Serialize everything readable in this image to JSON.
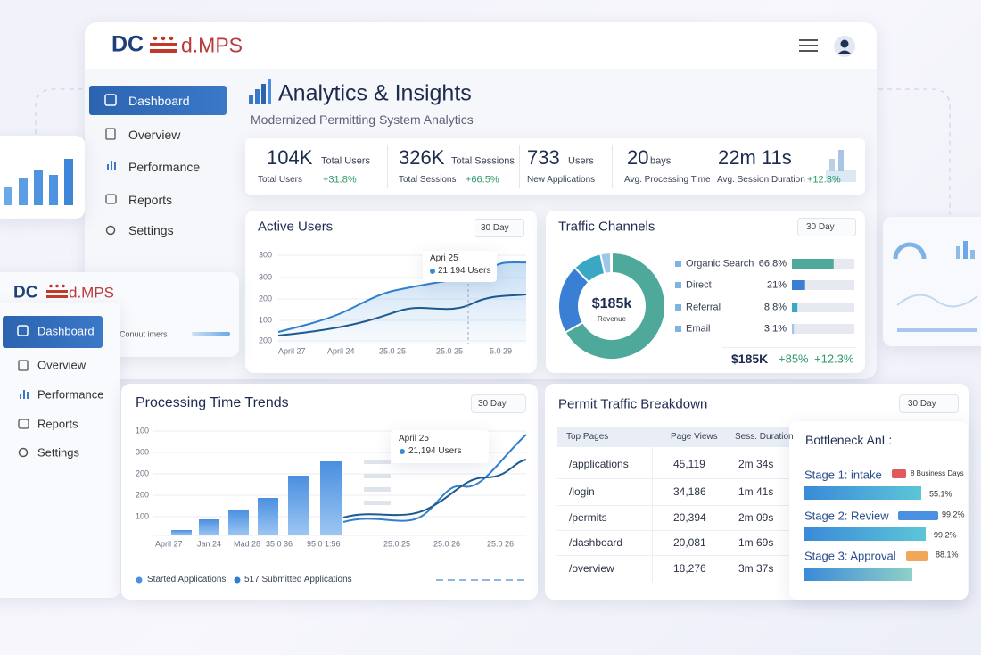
{
  "header": {
    "logo_mark": "DC",
    "logo_text": "d.MPS"
  },
  "nav": [
    "Dashboard",
    "Overview",
    "Performance",
    "Reports",
    "Settings"
  ],
  "page": {
    "title": "Analytics & Insights",
    "subtitle": "Modernized Permitting System Analytics"
  },
  "kpis": [
    {
      "value": "104K",
      "unit": "Total Users",
      "label": "Total Users",
      "change": "+31.8%"
    },
    {
      "value": "326K",
      "unit": "Total Sessions",
      "label": "Total Sessions",
      "change": "+66.5%"
    },
    {
      "value": "733",
      "unit": "Users",
      "label": "New Applications"
    },
    {
      "value": "20",
      "unit": "bays",
      "label": "Avg. Processing Time"
    },
    {
      "value": "22m 11s",
      "label": "Avg. Session Duration",
      "change": "+12.3%"
    }
  ],
  "active_users": {
    "title": "Active Users",
    "range": "30 Day",
    "y_labels": [
      300,
      300,
      200,
      100,
      200
    ],
    "x_labels": [
      "April 27",
      "April 24",
      "25.0 25",
      "25.0 25",
      "5.0 29"
    ],
    "tooltip": {
      "date": "Apri 25",
      "value": "21,194 Users"
    }
  },
  "traffic_channels": {
    "title": "Traffic Channels",
    "range": "30 Day",
    "center_value": "$185k",
    "center_label": "Revenue",
    "channels": [
      {
        "name": "Organic Search",
        "value": 66.8,
        "label": "66.8%",
        "color": "#4fa99a"
      },
      {
        "name": "Direct",
        "value": 21,
        "label": "21%",
        "color": "#3b7fd4"
      },
      {
        "name": "Referral",
        "value": 8.8,
        "label": "8.8%",
        "color": "#3aa7c4"
      },
      {
        "name": "Email",
        "value": 3.1,
        "label": "3.1%",
        "color": "#9cc7e8"
      }
    ],
    "total": "$185K",
    "change_1": "+85%",
    "change_2": "+12.3%"
  },
  "secondary_window": {
    "logo_mark": "DC",
    "logo_text": "d.MPS",
    "nav": [
      "Dashboard",
      "Overview",
      "Performance",
      "Reports",
      "Settings"
    ],
    "note": "Conuut imers"
  },
  "processing_time": {
    "title": "Processing Time Trends",
    "range": "30 Day",
    "y_labels": [
      100,
      300,
      200,
      200,
      100
    ],
    "x_labels": [
      "April 27",
      "Jan 24",
      "Mad 28",
      "35.0 36",
      "95.0 1:56",
      "25.0 25",
      "25.0 26",
      "25.0 26"
    ],
    "tooltip": {
      "date": "April 25",
      "value": "21,194 Users"
    },
    "legend": [
      "Started Applications",
      "517 Submitted Applications"
    ]
  },
  "permit_traffic": {
    "title": "Permit Traffic Breakdown",
    "range": "30 Day",
    "columns": [
      "Top Pages",
      "Page Views",
      "Sess. Duration"
    ],
    "rows": [
      [
        "/applications",
        "45,119",
        "2m 34s"
      ],
      [
        "/login",
        "34,186",
        "1m 41s"
      ],
      [
        "/permits",
        "20,394",
        "2m 09s"
      ],
      [
        "/dashboard",
        "20,081",
        "1m 69s"
      ],
      [
        "/overview",
        "18,276",
        "3m 37s"
      ]
    ]
  },
  "bottleneck": {
    "title": "Bottleneck AnL:",
    "stages": [
      {
        "name": "Stage 1: intake",
        "tag": "8 Business Days",
        "percent": "55.1%"
      },
      {
        "name": "Stage 2: Review",
        "tag": "99.2%",
        "percent": "99.2%"
      },
      {
        "name": "Stage 3: Approval",
        "tag": "88.1%"
      }
    ]
  }
}
